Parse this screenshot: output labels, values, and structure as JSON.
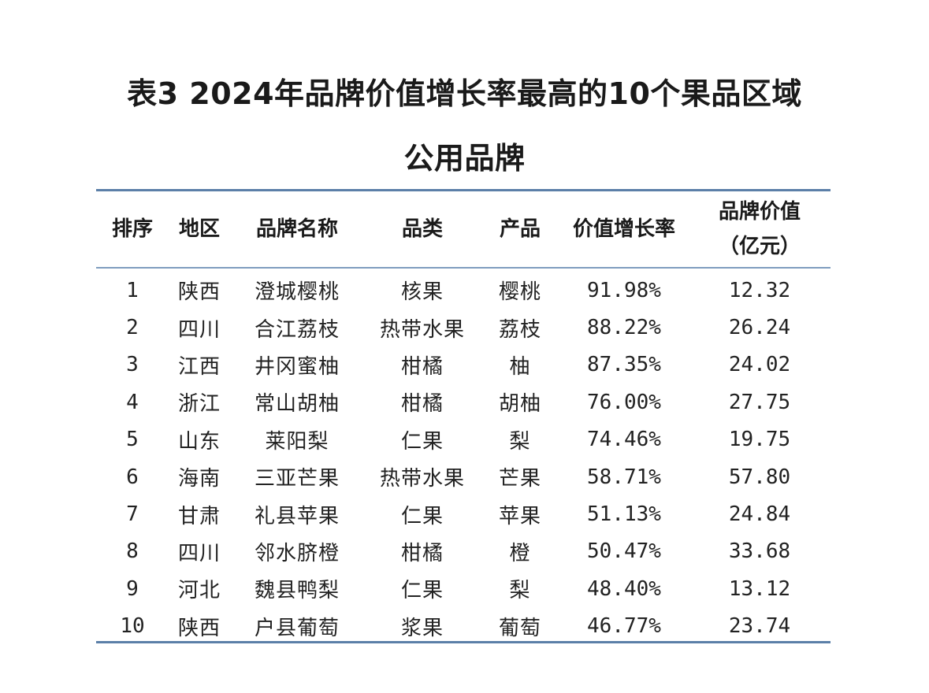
{
  "title": {
    "line1": "表3 2024年品牌价值增长率最高的10个果品区域",
    "line2": "公用品牌"
  },
  "table": {
    "headers": {
      "rank": "排序",
      "region": "地区",
      "brand": "品牌名称",
      "category": "品类",
      "product": "产品",
      "growth_rate": "价值增长率",
      "brand_value_line1": "品牌价值",
      "brand_value_line2": "（亿元）"
    },
    "rows": [
      {
        "rank": "1",
        "region": "陕西",
        "brand": "澄城樱桃",
        "category": "核果",
        "product": "樱桃",
        "growth_rate": "91.98%",
        "value": "12.32"
      },
      {
        "rank": "2",
        "region": "四川",
        "brand": "合江荔枝",
        "category": "热带水果",
        "product": "荔枝",
        "growth_rate": "88.22%",
        "value": "26.24"
      },
      {
        "rank": "3",
        "region": "江西",
        "brand": "井冈蜜柚",
        "category": "柑橘",
        "product": "柚",
        "growth_rate": "87.35%",
        "value": "24.02"
      },
      {
        "rank": "4",
        "region": "浙江",
        "brand": "常山胡柚",
        "category": "柑橘",
        "product": "胡柚",
        "growth_rate": "76.00%",
        "value": "27.75"
      },
      {
        "rank": "5",
        "region": "山东",
        "brand": "莱阳梨",
        "category": "仁果",
        "product": "梨",
        "growth_rate": "74.46%",
        "value": "19.75"
      },
      {
        "rank": "6",
        "region": "海南",
        "brand": "三亚芒果",
        "category": "热带水果",
        "product": "芒果",
        "growth_rate": "58.71%",
        "value": "57.80"
      },
      {
        "rank": "7",
        "region": "甘肃",
        "brand": "礼县苹果",
        "category": "仁果",
        "product": "苹果",
        "growth_rate": "51.13%",
        "value": "24.84"
      },
      {
        "rank": "8",
        "region": "四川",
        "brand": "邻水脐橙",
        "category": "柑橘",
        "product": "橙",
        "growth_rate": "50.47%",
        "value": "33.68"
      },
      {
        "rank": "9",
        "region": "河北",
        "brand": "魏县鸭梨",
        "category": "仁果",
        "product": "梨",
        "growth_rate": "48.40%",
        "value": "13.12"
      },
      {
        "rank": "10",
        "region": "陕西",
        "brand": "户县葡萄",
        "category": "浆果",
        "product": "葡萄",
        "growth_rate": "46.77%",
        "value": "23.74"
      }
    ]
  },
  "colors": {
    "rule": "#5b7fa8",
    "text": "#1a1a1a"
  }
}
